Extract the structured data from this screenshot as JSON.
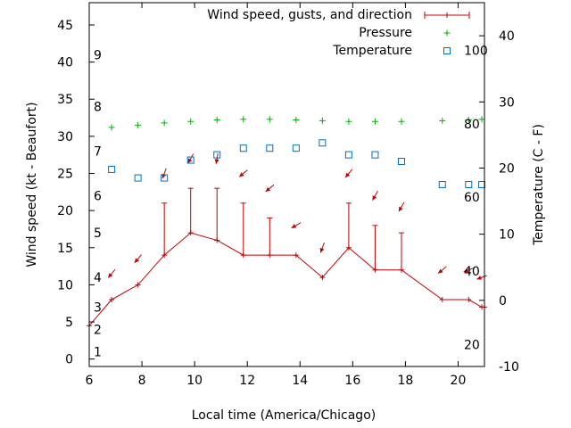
{
  "chart_data": {
    "type": "line",
    "xlabel": "Local time (America/Chicago)",
    "ylabel_left": "Wind speed (kt - Beaufort)",
    "ylabel_right": "Temperature (C - F)",
    "xlim": [
      6,
      21
    ],
    "ylim_left": [
      -1,
      48
    ],
    "ylim_right": [
      -10,
      45
    ],
    "x_ticks": [
      6,
      8,
      10,
      12,
      14,
      16,
      18,
      20
    ],
    "y_ticks_left": [
      0,
      5,
      10,
      15,
      20,
      25,
      30,
      35,
      40,
      45
    ],
    "y_ticks_right": [
      -10,
      0,
      10,
      20,
      30,
      40
    ],
    "beaufort_labels": [
      {
        "label": "1",
        "kt": 1
      },
      {
        "label": "2",
        "kt": 4
      },
      {
        "label": "3",
        "kt": 7
      },
      {
        "label": "4",
        "kt": 11
      },
      {
        "label": "5",
        "kt": 17
      },
      {
        "label": "6",
        "kt": 22
      },
      {
        "label": "7",
        "kt": 28
      },
      {
        "label": "8",
        "kt": 34
      },
      {
        "label": "9",
        "kt": 41
      }
    ],
    "fahrenheit_labels": [
      {
        "label": "20",
        "celsius": -6.7
      },
      {
        "label": "40",
        "celsius": 4.4
      },
      {
        "label": "60",
        "celsius": 15.6
      },
      {
        "label": "80",
        "celsius": 26.7
      },
      {
        "label": "100",
        "celsius": 37.8
      }
    ],
    "legend": {
      "position": "top-right",
      "entries": [
        "Wind speed, gusts, and direction",
        "Pressure",
        "Temperature"
      ]
    },
    "series": [
      {
        "name": "Wind speed, gusts, and direction",
        "color": "#c00000",
        "axis": "left",
        "x": [
          6,
          6.85,
          7.85,
          8.85,
          9.85,
          10.85,
          11.85,
          12.85,
          13.85,
          14.85,
          15.85,
          16.85,
          17.85,
          19.4,
          20.4,
          20.9,
          21
        ],
        "speed": [
          4.5,
          8,
          10,
          14,
          17,
          16,
          14,
          14,
          14,
          11,
          15,
          12,
          12,
          8,
          8,
          7,
          7
        ],
        "gust": [
          null,
          null,
          null,
          21,
          23,
          23,
          21,
          19,
          null,
          null,
          21,
          18,
          17,
          null,
          null,
          null,
          null
        ]
      },
      {
        "name": "Wind direction",
        "color": "#c00000",
        "axis": "left",
        "x": [
          6.85,
          7.85,
          8.85,
          9.85,
          10.85,
          11.85,
          12.85,
          13.85,
          14.85,
          15.85,
          16.85,
          17.85,
          19.4,
          20.4,
          20.9
        ],
        "y": [
          11.5,
          13.5,
          25,
          27,
          27,
          25,
          23,
          18,
          15,
          25,
          22,
          20.5,
          12,
          12,
          11
        ],
        "direction_deg": [
          40,
          40,
          20,
          30,
          10,
          50,
          50,
          60,
          20,
          40,
          30,
          30,
          50,
          70,
          70
        ]
      },
      {
        "name": "Pressure",
        "color": "#00b000",
        "axis": "left",
        "x": [
          6.85,
          7.85,
          8.85,
          9.85,
          10.85,
          11.85,
          12.85,
          13.85,
          14.85,
          15.85,
          16.85,
          17.85,
          19.4,
          20.4,
          20.9
        ],
        "values": [
          31.2,
          31.5,
          31.8,
          32,
          32.2,
          32.3,
          32.3,
          32.2,
          32.1,
          32,
          32,
          32,
          32.1,
          32.2,
          32.3
        ]
      },
      {
        "name": "Temperature",
        "color": "#0070c0",
        "axis": "right",
        "x": [
          6.85,
          7.85,
          8.85,
          9.85,
          10.85,
          11.85,
          12.85,
          13.85,
          14.85,
          15.85,
          16.85,
          17.85,
          19.4,
          20.4,
          20.9
        ],
        "values": [
          19.8,
          18.5,
          18.5,
          21.2,
          22,
          23,
          23,
          23,
          23.8,
          22,
          22,
          21,
          17.5,
          17.5,
          17.5
        ]
      }
    ]
  }
}
